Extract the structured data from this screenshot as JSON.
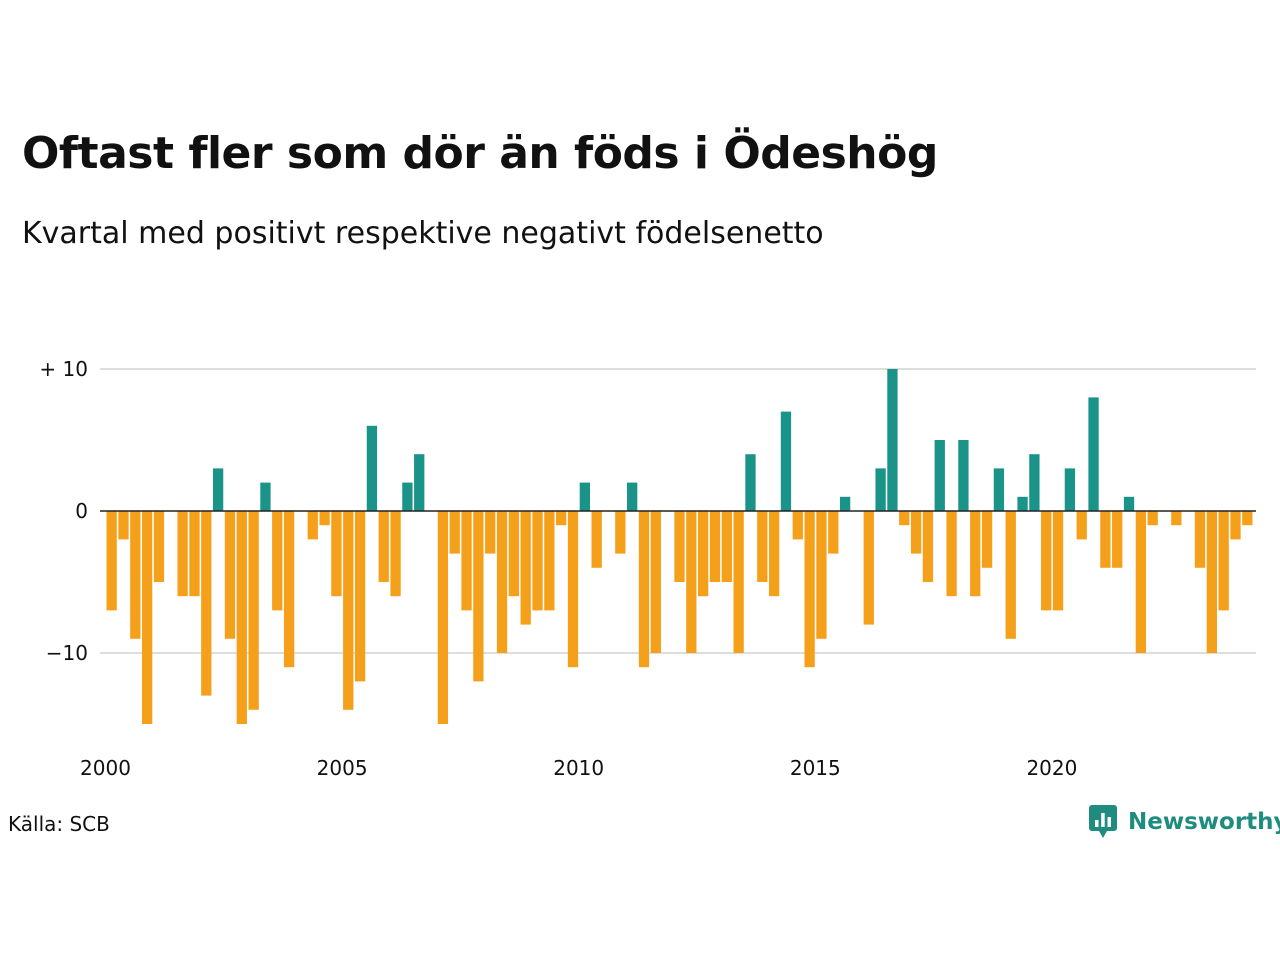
{
  "title": "Oftast fler som dör än föds i Ödeshög",
  "subtitle": "Kvartal med positivt respektive negativt födelsenetto",
  "source": "Källa: SCB",
  "brand": {
    "name": "Newsworthy",
    "icon": "newsworthy-logo-icon",
    "color": "#1e8c7e"
  },
  "colors": {
    "positive": "#1a9488",
    "negative": "#f5a01b",
    "grid": "#dddddd",
    "zero_line": "#222222"
  },
  "chart_data": {
    "type": "bar",
    "x_start_year": 2000,
    "periods_per_year": 4,
    "ylim": [
      -15,
      10
    ],
    "yticks": [
      {
        "value": 10,
        "label": "+ 10"
      },
      {
        "value": 0,
        "label": "0"
      },
      {
        "value": -10,
        "label": "−10"
      }
    ],
    "xticks": [
      {
        "year": 2000,
        "label": "2000"
      },
      {
        "year": 2005,
        "label": "2005"
      },
      {
        "year": 2010,
        "label": "2010"
      },
      {
        "year": 2015,
        "label": "2015"
      },
      {
        "year": 2020,
        "label": "2020"
      }
    ],
    "grid": true,
    "values": [
      -7,
      -2,
      -9,
      -15,
      -5,
      0,
      -6,
      -6,
      -13,
      3,
      -9,
      -15,
      -14,
      2,
      -7,
      -11,
      0,
      -2,
      -1,
      -6,
      -14,
      -12,
      6,
      -5,
      -6,
      2,
      4,
      0,
      -15,
      -3,
      -7,
      -12,
      -3,
      -10,
      -6,
      -8,
      -7,
      -7,
      -1,
      -11,
      2,
      -4,
      0,
      -3,
      2,
      -11,
      -10,
      0,
      -5,
      -10,
      -6,
      -5,
      -5,
      -10,
      4,
      -5,
      -6,
      7,
      -2,
      -11,
      -9,
      -3,
      1,
      0,
      -8,
      3,
      10,
      -1,
      -3,
      -5,
      5,
      -6,
      5,
      -6,
      -4,
      3,
      -9,
      1,
      4,
      -7,
      -7,
      3,
      -2,
      8,
      -4,
      -4,
      1,
      -10,
      -1,
      0,
      -1,
      0,
      -4,
      -10,
      -7,
      -2,
      -1
    ]
  }
}
